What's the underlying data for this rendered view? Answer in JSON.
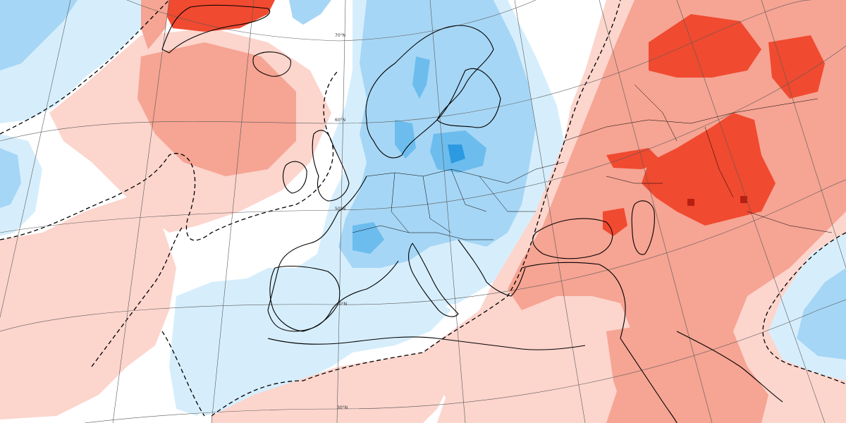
{
  "map": {
    "kind": "temperature anomaly map",
    "region": "Europe / North Atlantic",
    "projection": "conic (curved parallels)",
    "colors": {
      "background": "#ffffff",
      "warm_light": "#fcd5cd",
      "warm_medium": "#f6a493",
      "warm_strong": "#f04a30",
      "warm_extreme": "#b81f10",
      "cold_light": "#d6eefc",
      "cold_medium": "#a6d6f5",
      "cold_strong": "#6cbdee",
      "cold_extreme": "#2c9ae0",
      "coastline": "#000000",
      "graticule": "#5a5a5a",
      "zero_contour": "#000000"
    },
    "latitude_labels": {
      "lat70": "70°N",
      "lat60": "60°N",
      "lat50": "50°N",
      "lat40": "40°N",
      "lat30": "30°N"
    }
  }
}
